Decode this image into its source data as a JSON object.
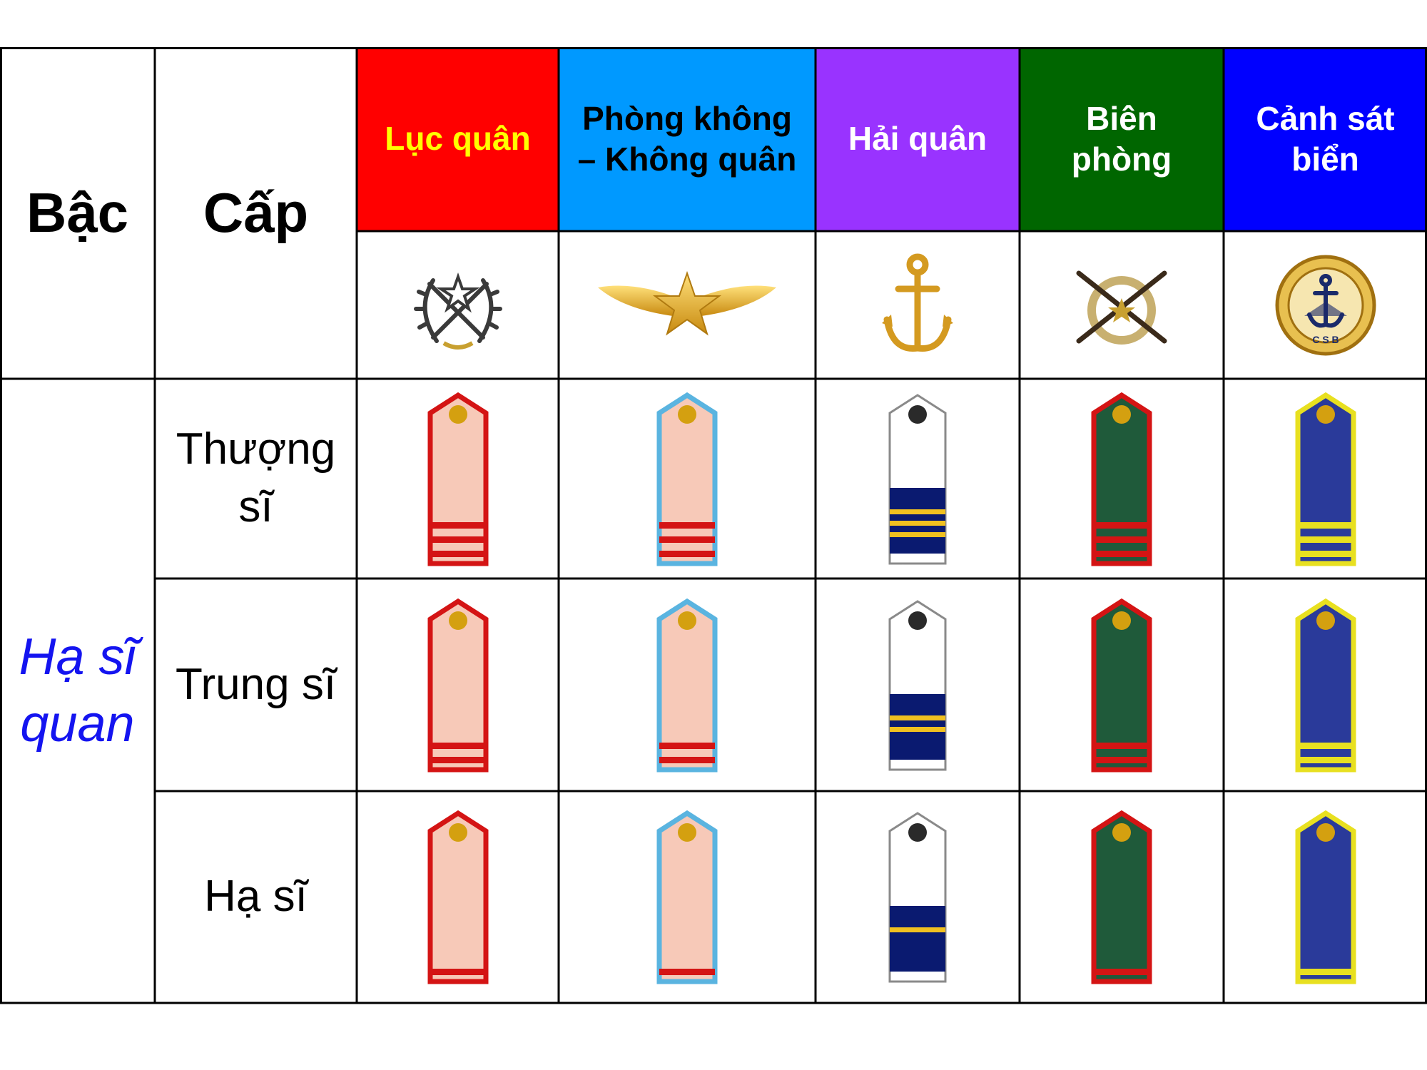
{
  "table": {
    "col_bac": "Bậc",
    "col_cap": "Cấp",
    "tier": "Hạ sĩ quan",
    "tier_color": "#1414f0",
    "branches": [
      {
        "label": "Lục quân",
        "bg": "#ff0000",
        "fg": "#ffff00",
        "emblem": "wreath-crossed-rifles-star-emblem"
      },
      {
        "label": "Phòng không – Không quân",
        "bg": "#0099ff",
        "fg": "#000000",
        "emblem": "winged-star-emblem"
      },
      {
        "label": "Hải quân",
        "bg": "#9933ff",
        "fg": "#ffffff",
        "emblem": "anchor-emblem"
      },
      {
        "label": "Biên phòng",
        "bg": "#006600",
        "fg": "#ffffff",
        "emblem": "crossed-rifles-emblem"
      },
      {
        "label": "Cảnh sát biển",
        "bg": "#0000ff",
        "fg": "#ffffff",
        "emblem": "csb-anchor-emblem"
      }
    ],
    "ranks": [
      {
        "label": "Thượng sĩ",
        "stripes": 3
      },
      {
        "label": "Trung sĩ",
        "stripes": 2
      },
      {
        "label": "Hạ sĩ",
        "stripes": 1
      }
    ]
  }
}
